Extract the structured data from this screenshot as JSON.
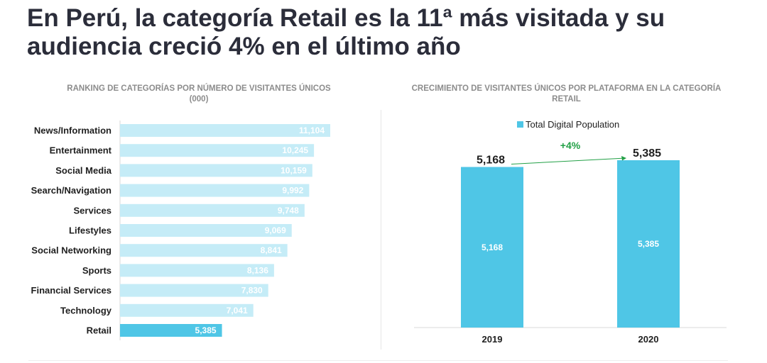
{
  "title": "En Perú, la categoría Retail es la 11ª más visitada y su audiencia creció 4% en el último año",
  "chart_data": [
    {
      "type": "bar",
      "orientation": "horizontal",
      "title": "RANKING DE CATEGORÍAS POR NÚMERO DE VISITANTES ÚNICOS",
      "subtitle": "(000)",
      "categories": [
        "News/Information",
        "Entertainment",
        "Social Media",
        "Search/Navigation",
        "Services",
        "Lifestyles",
        "Social Networking",
        "Sports",
        "Financial Services",
        "Technology",
        "Retail"
      ],
      "values": [
        11104,
        10245,
        10159,
        9992,
        9748,
        9069,
        8841,
        8136,
        7830,
        7041,
        5385
      ],
      "value_labels": [
        "11,104",
        "10,245",
        "10,159",
        "9,992",
        "9,748",
        "9,069",
        "8,841",
        "8,136",
        "7,830",
        "7,041",
        "5,385"
      ],
      "highlight": "Retail",
      "colors": {
        "bar": "#c5ecf7",
        "highlight": "#4fc6e6"
      },
      "xlim": [
        0,
        11104
      ]
    },
    {
      "type": "bar",
      "title": "CRECIMIENTO DE VISITANTES ÚNICOS POR PLATAFORMA EN LA CATEGORÍA RETAIL",
      "categories": [
        "2019",
        "2020"
      ],
      "series": [
        {
          "name": "Total Digital Population",
          "values": [
            5168,
            5385
          ],
          "value_labels": [
            "5,168",
            "5,385"
          ]
        }
      ],
      "annotation": "+4%",
      "legend": "top",
      "colors": {
        "bar": "#4fc6e6",
        "annotation": "#22a046"
      },
      "ylim": [
        0,
        5385
      ]
    }
  ]
}
